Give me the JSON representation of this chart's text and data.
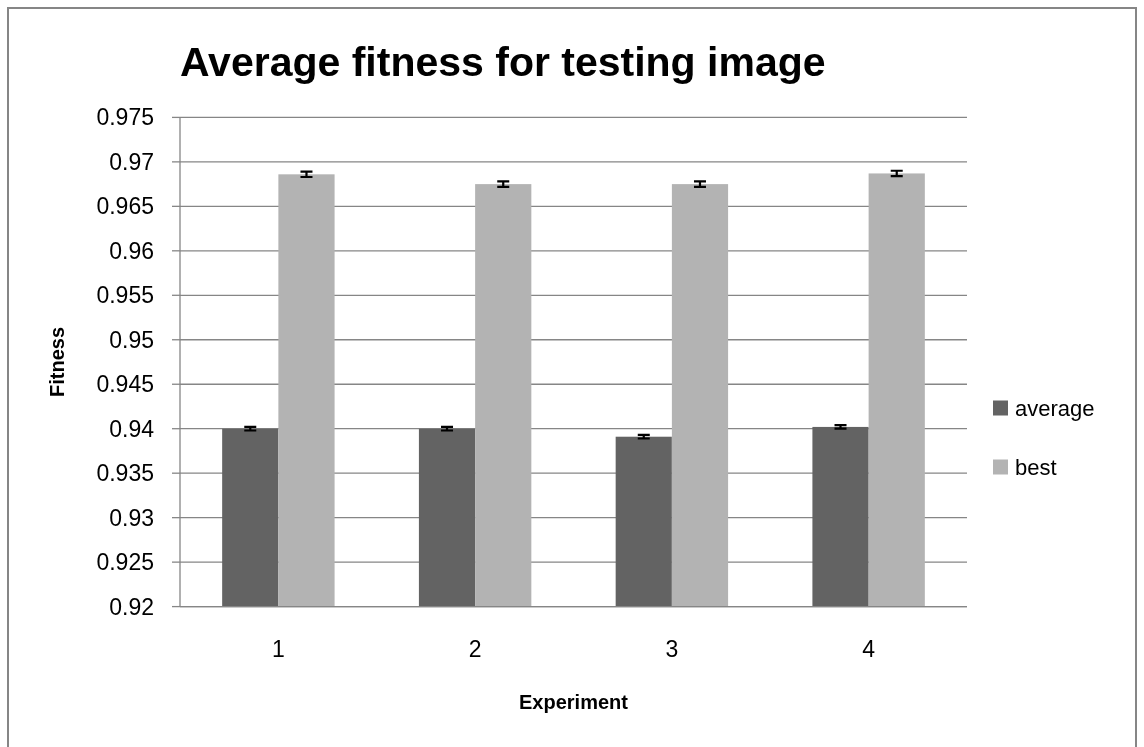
{
  "chart_data": {
    "type": "bar",
    "title": "Average fitness for testing image",
    "xlabel": "Experiment",
    "ylabel": "Fitness",
    "categories": [
      "1",
      "2",
      "3",
      "4"
    ],
    "series": [
      {
        "name": "average",
        "color": "#636363",
        "values": [
          0.94,
          0.94,
          0.9391,
          0.9402
        ],
        "errors": [
          0.0002,
          0.0002,
          0.0002,
          0.0002
        ]
      },
      {
        "name": "best",
        "color": "#b3b3b3",
        "values": [
          0.9686,
          0.9675,
          0.9675,
          0.9687
        ],
        "errors": [
          0.0003,
          0.0003,
          0.0003,
          0.0003
        ]
      }
    ],
    "ylim": [
      0.92,
      0.975
    ],
    "yticks": [
      0.92,
      0.925,
      0.93,
      0.935,
      0.94,
      0.945,
      0.95,
      0.955,
      0.96,
      0.965,
      0.97,
      0.975
    ],
    "grid": "y",
    "legend": "right"
  }
}
